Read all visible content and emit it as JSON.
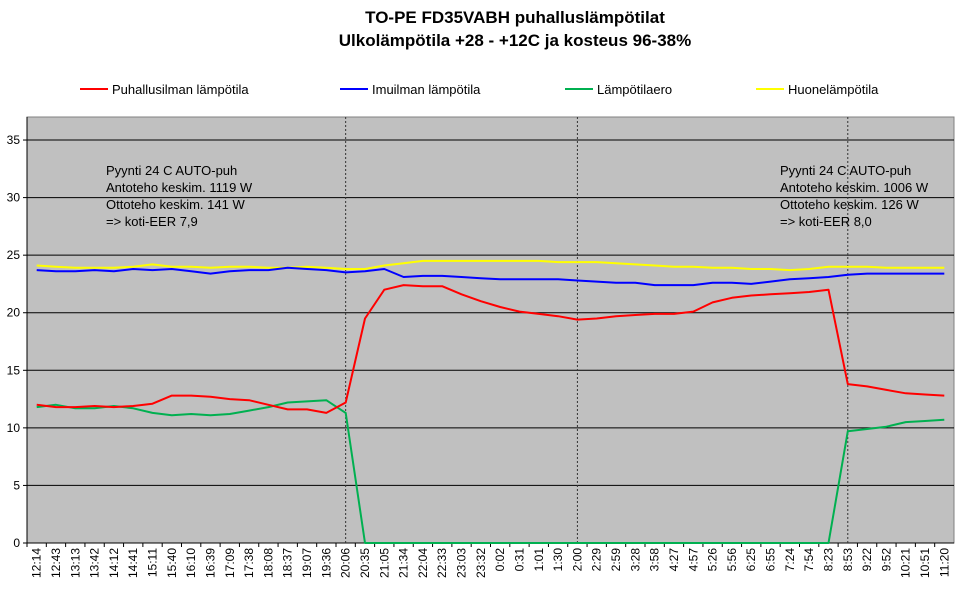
{
  "chart_data": {
    "type": "line",
    "title": "TO-PE FD35VABH puhalluslämpötilat",
    "subtitle": "Ulkolämpötila +28 - +12C ja kosteus 96-38%",
    "xlabel": "",
    "ylabel": "",
    "ylim": [
      0,
      37
    ],
    "yticks": [
      0,
      5,
      10,
      15,
      20,
      25,
      30,
      35
    ],
    "grid": true,
    "legend_position": "top",
    "plot_background": "#c0c0c0",
    "categories": [
      "12:14",
      "12:43",
      "13:13",
      "13:42",
      "14:12",
      "14:41",
      "15:11",
      "15:40",
      "16:10",
      "16:39",
      "17:09",
      "17:38",
      "18:08",
      "18:37",
      "19:07",
      "19:36",
      "20:06",
      "20:35",
      "21:05",
      "21:34",
      "22:04",
      "22:33",
      "23:03",
      "23:32",
      "0:02",
      "0:31",
      "1:01",
      "1:30",
      "2:00",
      "2:29",
      "2:59",
      "3:28",
      "3:58",
      "4:27",
      "4:57",
      "5:26",
      "5:56",
      "6:25",
      "6:55",
      "7:24",
      "7:54",
      "8:23",
      "8:53",
      "9:22",
      "9:52",
      "10:21",
      "10:51",
      "11:20"
    ],
    "series": [
      {
        "name": "Puhallusilman lämpötila",
        "color": "#ff0000",
        "values": [
          12.0,
          11.8,
          11.8,
          11.9,
          11.8,
          11.9,
          12.1,
          12.8,
          12.8,
          12.7,
          12.5,
          12.4,
          12.0,
          11.6,
          11.6,
          11.3,
          12.2,
          19.5,
          22.0,
          22.4,
          22.3,
          22.3,
          21.6,
          21.0,
          20.5,
          20.1,
          19.9,
          19.7,
          19.4,
          19.5,
          19.7,
          19.8,
          19.9,
          19.9,
          20.1,
          20.9,
          21.3,
          21.5,
          21.6,
          21.7,
          21.8,
          22.0,
          13.8,
          13.6,
          13.3,
          13.0,
          12.9,
          12.8
        ]
      },
      {
        "name": "Imuilman lämpötila",
        "color": "#0000ff",
        "values": [
          23.7,
          23.6,
          23.6,
          23.7,
          23.6,
          23.8,
          23.7,
          23.8,
          23.6,
          23.4,
          23.6,
          23.7,
          23.7,
          23.9,
          23.8,
          23.7,
          23.5,
          23.6,
          23.8,
          23.1,
          23.2,
          23.2,
          23.1,
          23.0,
          22.9,
          22.9,
          22.9,
          22.9,
          22.8,
          22.7,
          22.6,
          22.6,
          22.4,
          22.4,
          22.4,
          22.6,
          22.6,
          22.5,
          22.7,
          22.9,
          23.0,
          23.1,
          23.3,
          23.4,
          23.4,
          23.4,
          23.4,
          23.4
        ]
      },
      {
        "name": "Lämpötilaero",
        "color": "#00b050",
        "values": [
          11.8,
          12.0,
          11.7,
          11.7,
          11.9,
          11.7,
          11.3,
          11.1,
          11.2,
          11.1,
          11.2,
          11.5,
          11.8,
          12.2,
          12.3,
          12.4,
          11.3,
          0.0,
          0.0,
          0.0,
          0.0,
          0.0,
          0.0,
          0.0,
          0.0,
          0.0,
          0.0,
          0.0,
          0.0,
          0.0,
          0.0,
          0.0,
          0.0,
          0.0,
          0.0,
          0.0,
          0.0,
          0.0,
          0.0,
          0.0,
          0.0,
          0.0,
          9.7,
          9.9,
          10.1,
          10.5,
          10.6,
          10.7
        ]
      },
      {
        "name": "Huonelämpötila",
        "color": "#ffff00",
        "values": [
          24.1,
          24.0,
          23.9,
          23.9,
          23.9,
          24.0,
          24.2,
          24.0,
          24.0,
          23.9,
          24.0,
          24.0,
          23.9,
          23.9,
          24.0,
          23.9,
          23.8,
          23.8,
          24.1,
          24.3,
          24.5,
          24.5,
          24.5,
          24.5,
          24.5,
          24.5,
          24.5,
          24.4,
          24.4,
          24.4,
          24.3,
          24.2,
          24.1,
          24.0,
          24.0,
          23.9,
          23.9,
          23.8,
          23.8,
          23.7,
          23.8,
          24.0,
          24.0,
          24.0,
          23.9,
          23.9,
          23.9,
          23.9
        ]
      }
    ],
    "event_lines": [
      "20:06",
      "2:00",
      "8:53"
    ],
    "annotations": [
      {
        "id": "left",
        "lines": [
          "Pyynti 24 C AUTO-puh",
          "Antoteho keskim. 1119 W",
          "Ottoteho keskim. 141 W",
          "=> koti-EER 7,9"
        ]
      },
      {
        "id": "right",
        "lines": [
          "Pyynti 24 C AUTO-puh",
          "Antoteho keskim. 1006 W",
          "Ottoteho keskim. 126 W",
          "=> koti-EER 8,0"
        ]
      }
    ]
  }
}
